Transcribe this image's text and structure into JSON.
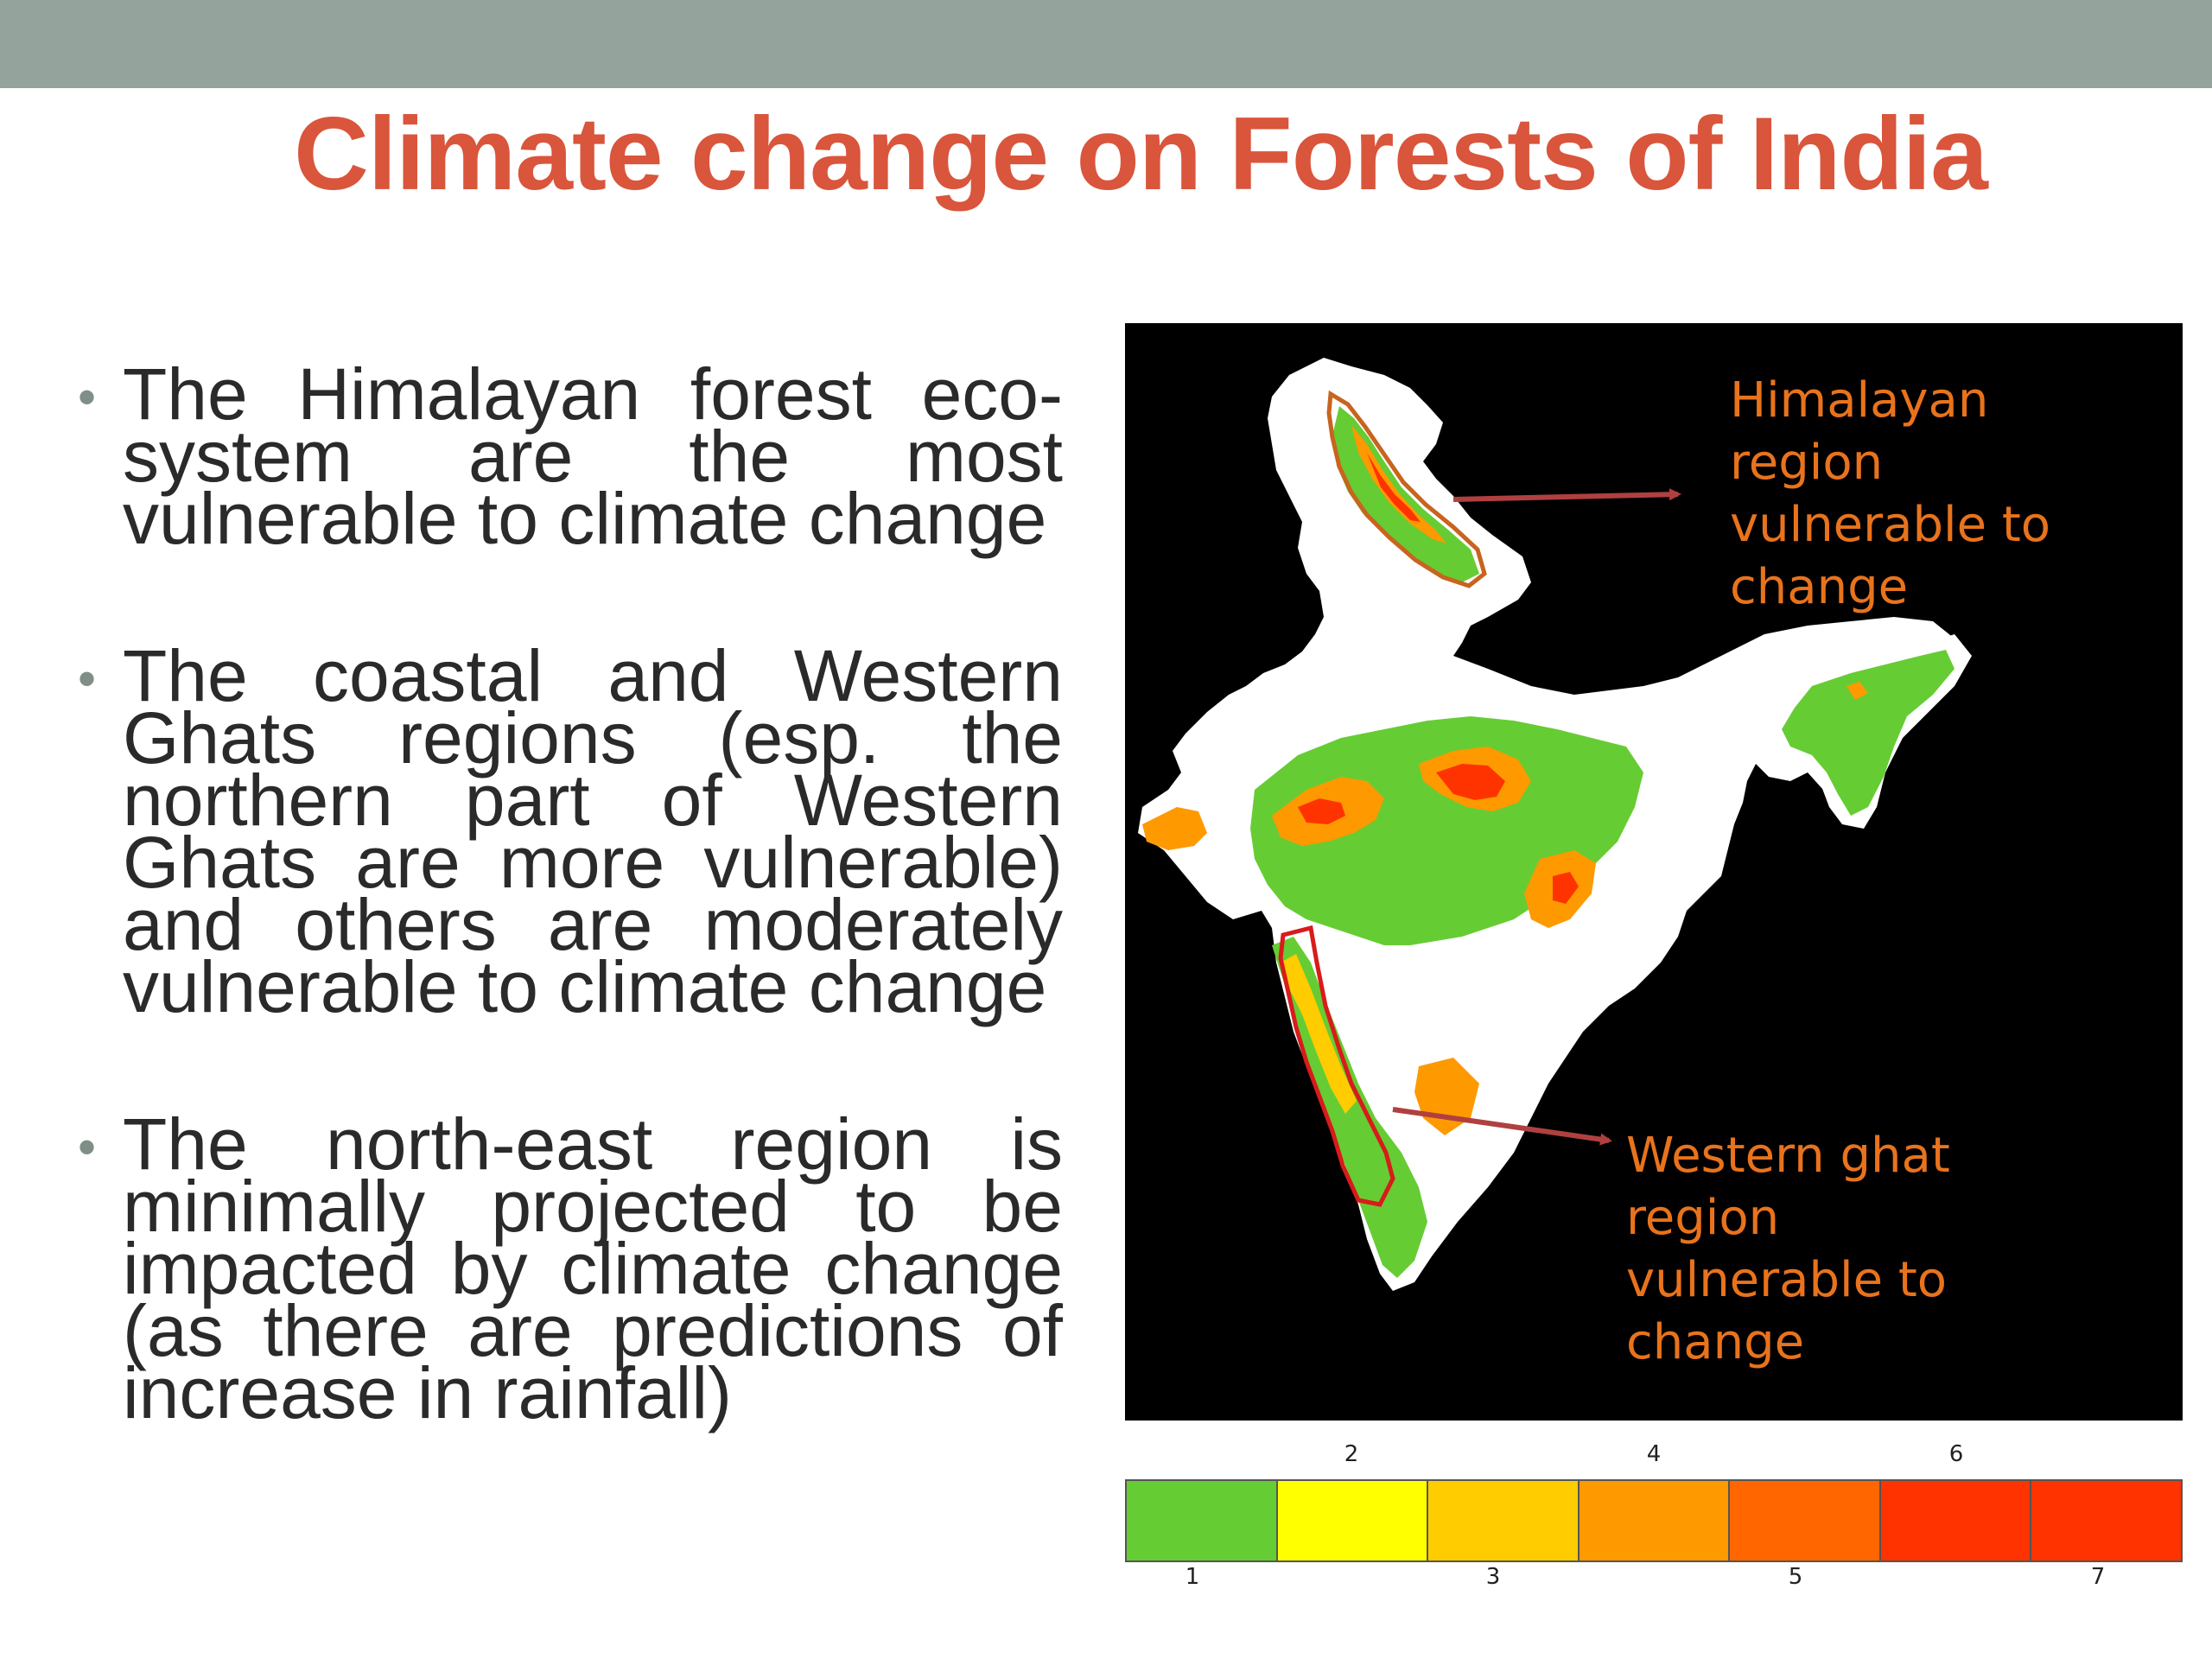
{
  "slide": {
    "title": "Climate change on Forests of India"
  },
  "bullets": [
    {
      "marker": "•",
      "text": "The Himalayan forest eco-system are the most vulnerable to climate change"
    },
    {
      "marker": "•",
      "text": "The coastal and Western Ghats regions (esp. the northern part of Western Ghats are more vulnerable) and others are moderately vulnerable to climate change"
    },
    {
      "marker": "•",
      "text": "The north-east region is minimally projected to be impacted by climate change (as there are predictions of increase in rainfall)"
    }
  ],
  "map": {
    "labels": {
      "himalaya": "Himalayan\nregion\nvulnerable to\nchange",
      "ghat": "Western ghat\nregion\nvulnerable to\nchange"
    },
    "label_color": "#e8731c",
    "arrow_color": "#b04040",
    "outline_colors": {
      "himalaya": "#c8641e",
      "ghat": "#d81b1b"
    }
  },
  "legend": {
    "classes": [
      {
        "value": "1",
        "color": "#66cc33"
      },
      {
        "value": "2",
        "color": "#ffff00"
      },
      {
        "value": "3",
        "color": "#ffcc00"
      },
      {
        "value": "4",
        "color": "#ff9900"
      },
      {
        "value": "5",
        "color": "#ff6600"
      },
      {
        "value": "6",
        "color": "#ff3300"
      },
      {
        "value": "7",
        "color": "#ff3300"
      }
    ],
    "top_ticks": [
      "2",
      "4",
      "6"
    ],
    "bottom_ticks": [
      "1",
      "3",
      "5",
      "7"
    ]
  },
  "colors": {
    "title": "#d9553c",
    "top_band": "#94a39b",
    "body_text": "#2a2a2a",
    "map_background": "#000000",
    "land": "#ffffff",
    "forest_green": "#66cc33",
    "forest_orange": "#ff9900",
    "forest_red": "#ff3300"
  }
}
